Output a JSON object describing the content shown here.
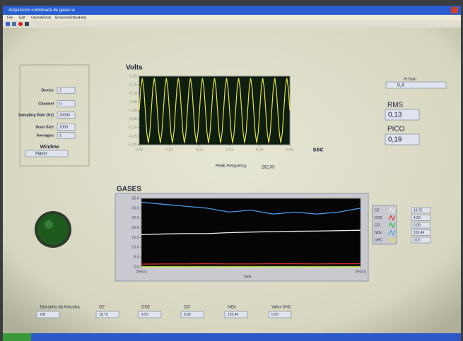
{
  "window": {
    "title": "Adquisicion combinada de gases.vi",
    "menu": [
      "File",
      "Edit",
      "Operate",
      "Tools",
      "Browse",
      "Window",
      "Help"
    ]
  },
  "daq_panel": {
    "fields": [
      {
        "label": "Device",
        "value": "2"
      },
      {
        "label": "Channel",
        "value": "0"
      },
      {
        "label": "Sampling Rate (Hz)",
        "value": "20000"
      },
      {
        "label": "Scan Size",
        "value": "1000"
      },
      {
        "label": "Averages",
        "value": "1"
      }
    ],
    "window_label": "Window",
    "window_value": "Hann"
  },
  "readouts": {
    "hi_gain_label": "Hi Gain",
    "hi_gain_value": "0,4",
    "rms_label": "RMS",
    "rms_value": "0,13",
    "pico_label": "PICO",
    "pico_value": "0,19",
    "peak_frequency_label": "Peak Frequency",
    "peak_frequency_value": "262,03"
  },
  "chart_data": [
    {
      "type": "line",
      "title": "Volts",
      "x_label": "sec",
      "x": [
        0,
        0.0005,
        0.001,
        0.0015,
        0.002,
        0.0025,
        0.003,
        0.0035,
        0.004,
        0.0045,
        0.005,
        0.0055,
        0.006,
        0.0065,
        0.007,
        0.0075,
        0.008,
        0.0085,
        0.009,
        0.0095,
        0.01,
        0.0105,
        0.011,
        0.0115,
        0.012,
        0.0125,
        0.013,
        0.0135,
        0.014,
        0.0145,
        0.015,
        0.0155,
        0.016,
        0.0165,
        0.017,
        0.0175,
        0.018,
        0.0185,
        0.019,
        0.0195,
        0.02,
        0.0205,
        0.021,
        0.0215,
        0.022,
        0.0225,
        0.023,
        0.0235,
        0.024,
        0.0245,
        0.025,
        0.0255,
        0.026,
        0.0265,
        0.027,
        0.0275,
        0.028,
        0.0285,
        0.029,
        0.0295,
        0.03,
        0.0305,
        0.031,
        0.0315,
        0.032,
        0.0325,
        0.033,
        0.0335,
        0.034,
        0.0345,
        0.035,
        0.0355,
        0.036,
        0.0365,
        0.037,
        0.0375,
        0.038,
        0.0385,
        0.039,
        0.0395,
        0.04,
        0.0405,
        0.041,
        0.0415,
        0.042,
        0.0425,
        0.043,
        0.0435,
        0.044,
        0.0445,
        0.045,
        0.0455,
        0.046,
        0.0465,
        0.047,
        0.0475,
        0.048,
        0.0485,
        0.049,
        0.0495,
        0.05
      ],
      "series": [
        {
          "color": "#e8e040",
          "values": [
            0,
            0.13,
            0.19,
            0.13,
            0,
            -0.13,
            -0.19,
            -0.13,
            0,
            0.13,
            0.19,
            0.13,
            0,
            -0.13,
            -0.19,
            -0.13,
            0,
            0.13,
            0.19,
            0.13,
            0,
            -0.13,
            -0.19,
            -0.13,
            0,
            0.13,
            0.19,
            0.13,
            0,
            -0.13,
            -0.19,
            -0.13,
            0,
            0.13,
            0.19,
            0.13,
            0,
            -0.13,
            -0.19,
            -0.13,
            0,
            0.13,
            0.19,
            0.13,
            0,
            -0.13,
            -0.19,
            -0.13,
            0,
            0.13,
            0.19,
            0.13,
            0,
            -0.13,
            -0.19,
            -0.13,
            0,
            0.13,
            0.19,
            0.13,
            0,
            -0.13,
            -0.19,
            -0.13,
            0,
            0.13,
            0.19,
            0.13,
            0,
            -0.13,
            -0.19,
            -0.13,
            0,
            0.13,
            0.19,
            0.13,
            0,
            -0.13,
            -0.19,
            -0.13,
            0,
            0.13,
            0.19,
            0.13,
            0,
            -0.13,
            -0.19,
            -0.13,
            0,
            0.13,
            0.19,
            0.13,
            0,
            -0.13,
            -0.19,
            -0.13,
            0,
            0.13,
            0.19,
            0.13,
            0
          ]
        }
      ],
      "xlim": [
        0,
        0.05
      ],
      "ylim": [
        -0.2,
        0.2
      ],
      "xticks": [
        {
          "value": 0,
          "label": "0,00"
        },
        {
          "value": 0.01,
          "label": "0,01"
        },
        {
          "value": 0.02,
          "label": "0,02"
        },
        {
          "value": 0.03,
          "label": "0,03"
        },
        {
          "value": 0.04,
          "label": "0,04"
        },
        {
          "value": 0.05,
          "label": "0,05"
        }
      ],
      "yticks": [
        {
          "value": 0.2,
          "label": "0,20"
        },
        {
          "value": 0.15,
          "label": "0,15"
        },
        {
          "value": 0.1,
          "label": "0,10"
        },
        {
          "value": 0.05,
          "label": "0,05"
        },
        {
          "value": 0,
          "label": "0,00"
        },
        {
          "value": -0.05,
          "label": "-0,05"
        },
        {
          "value": -0.1,
          "label": "-0,10"
        },
        {
          "value": -0.15,
          "label": "-0,15"
        },
        {
          "value": -0.2,
          "label": "-0,20"
        }
      ]
    },
    {
      "type": "line",
      "title": "GASES",
      "x_label": "Time",
      "x": [
        0,
        3,
        6,
        9,
        12,
        15,
        18,
        21,
        24,
        27,
        30
      ],
      "series": [
        {
          "name": "O2",
          "color": "#f0f0f0",
          "values": [
            16.5,
            16.8,
            17,
            17,
            17.5,
            17.8,
            18,
            18.2,
            18.3,
            18.5,
            18.7
          ]
        },
        {
          "name": "CO2",
          "color": "#e03030",
          "values": [
            1.4,
            1.5,
            1.5,
            1.6,
            1.5,
            1.5,
            1.6,
            1.6,
            1.5,
            1.6,
            1.6
          ]
        },
        {
          "name": "CO",
          "color": "#30c040",
          "values": [
            0.2,
            0.2,
            0.2,
            0.2,
            0.2,
            0.2,
            0.2,
            0.2,
            0.2,
            0.2,
            0.2
          ]
        },
        {
          "name": "NOx",
          "color": "#4a9ae8",
          "values": [
            33,
            32,
            31,
            30,
            28,
            29,
            27,
            28,
            27,
            28,
            30
          ]
        },
        {
          "name": "UHC",
          "color": "#e8e040",
          "values": [
            0,
            0,
            0,
            0,
            0,
            0,
            0,
            0,
            0,
            0,
            0
          ]
        }
      ],
      "xlim": [
        0,
        30
      ],
      "ylim": [
        0,
        35
      ],
      "xticks": [
        {
          "value": 0,
          "label": "29603"
        },
        {
          "value": 30,
          "label": "29633"
        }
      ],
      "yticks": [
        {
          "value": 35,
          "label": "35.0"
        },
        {
          "value": 30,
          "label": "30.0"
        },
        {
          "value": 25,
          "label": "25.0"
        },
        {
          "value": 20,
          "label": "20.0"
        },
        {
          "value": 15,
          "label": "15.0"
        },
        {
          "value": 10,
          "label": "10.0"
        },
        {
          "value": 5,
          "label": "5.0"
        },
        {
          "value": 0,
          "label": "0.0"
        }
      ]
    }
  ],
  "gas_readouts": [
    "18,75",
    "4,59",
    "0,09",
    "155,46",
    "0,00"
  ],
  "bottom_controls": [
    {
      "label": "Tamanho da Amostra",
      "value": "100"
    },
    {
      "label": "O2",
      "value": "18,75"
    },
    {
      "label": "CO2",
      "value": "4,59"
    },
    {
      "label": "CO",
      "value": "0,09"
    },
    {
      "label": "NOx",
      "value": "155,46"
    },
    {
      "label": "Valor UHC",
      "value": "0,00"
    }
  ]
}
